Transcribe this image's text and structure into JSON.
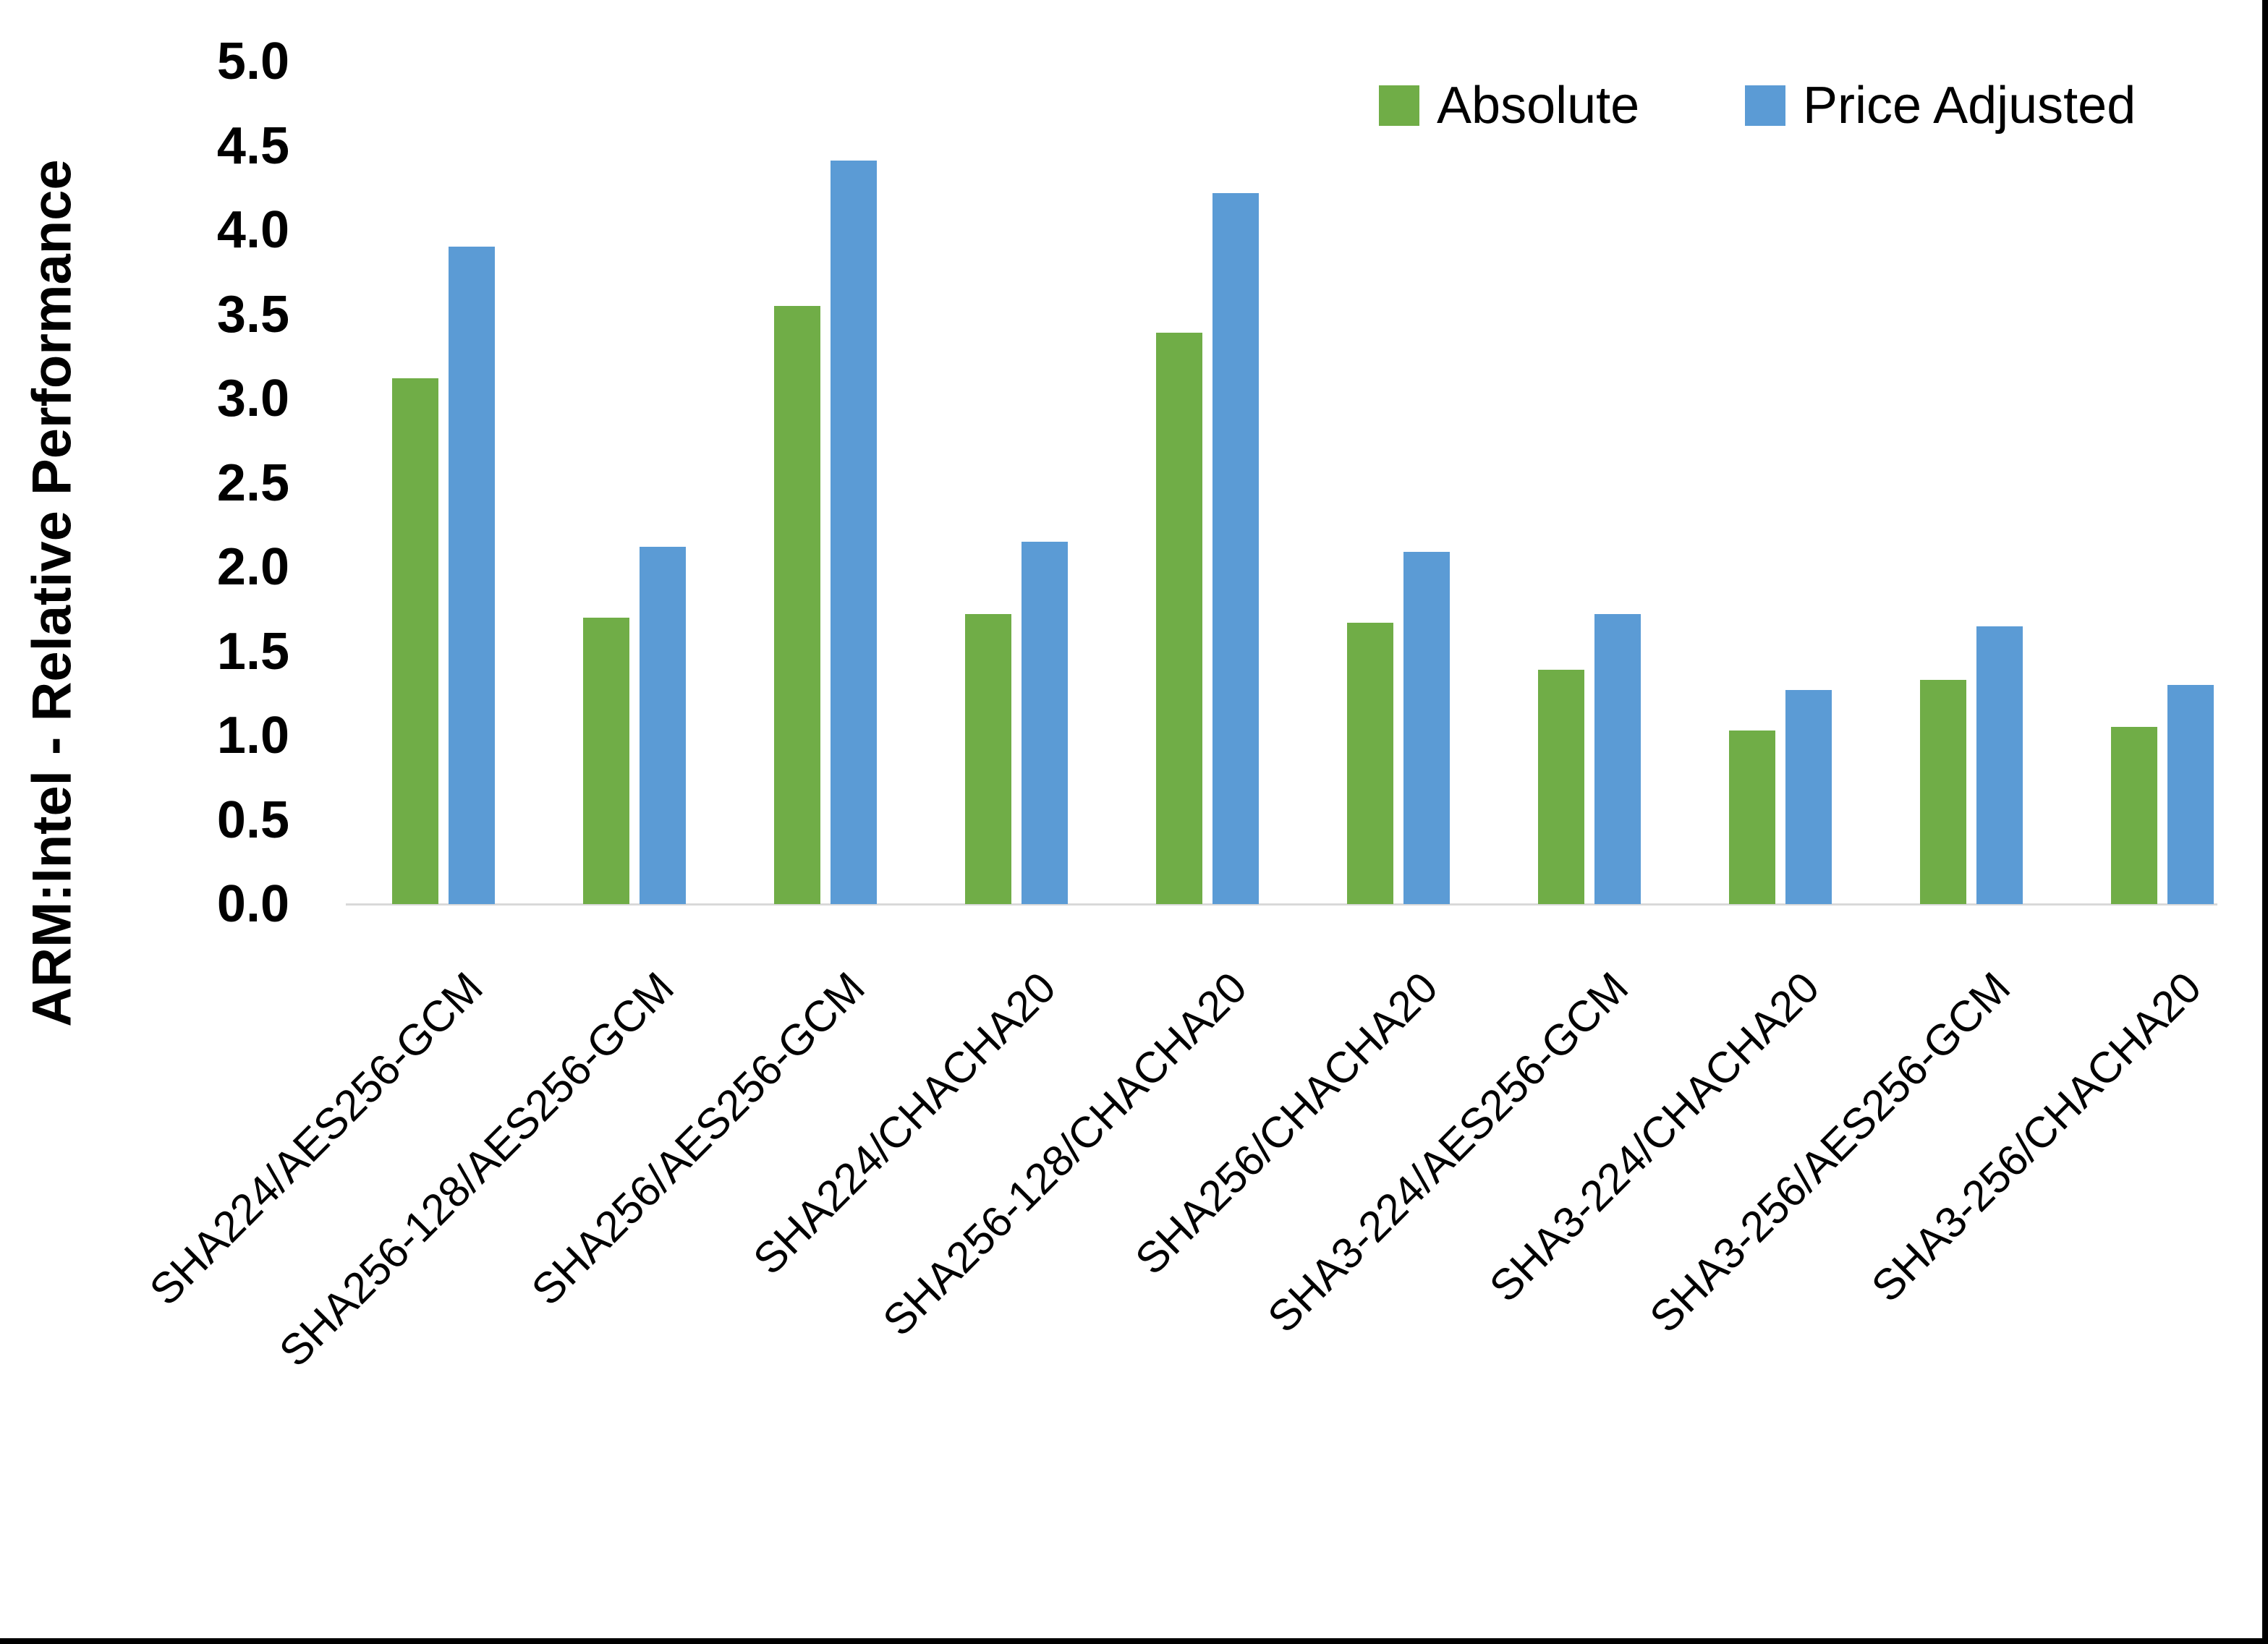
{
  "chart_data": {
    "type": "bar",
    "title": "",
    "xlabel": "",
    "ylabel": "ARM:Intel - Relative Performance",
    "ylim": [
      0.0,
      5.0
    ],
    "ytick_step": 0.5,
    "ytick_labels": [
      "0.0",
      "0.5",
      "1.0",
      "1.5",
      "2.0",
      "2.5",
      "3.0",
      "3.5",
      "4.0",
      "4.5",
      "5.0"
    ],
    "grid": false,
    "axis_line_color": "#D9D9D9",
    "legend_position": "top-right",
    "background_color": "#FFFFFF",
    "text_color": "#000000",
    "page_border_color": "#000000",
    "categories": [
      "SHA224/AES256-GCM",
      "SHA256-128/AES256-GCM",
      "SHA256/AES256-GCM",
      "SHA224/CHACHA20",
      "SHA256-128/CHACHA20",
      "SHA256/CHACHA20",
      "SHA3-224/AES256-GCM",
      "SHA3-224/CHACHA20",
      "SHA3-256/AES256-GCM",
      "SHA3-256/CHACHA20"
    ],
    "series": [
      {
        "name": "Absolute",
        "color": "#70AD47",
        "values": [
          3.12,
          1.7,
          3.55,
          1.72,
          3.39,
          1.67,
          1.39,
          1.03,
          1.33,
          1.05
        ]
      },
      {
        "name": "Price Adjusted",
        "color": "#5B9BD5",
        "values": [
          3.9,
          2.12,
          4.41,
          2.15,
          4.22,
          2.09,
          1.72,
          1.27,
          1.65,
          1.3
        ]
      }
    ]
  }
}
